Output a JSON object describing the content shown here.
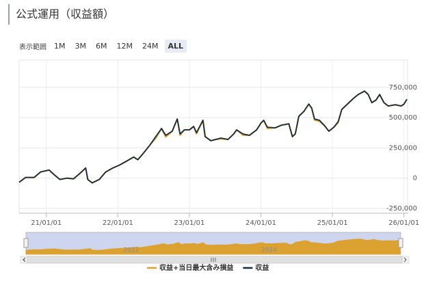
{
  "title": "公式運用（収益額）",
  "range_selector": {
    "label": "表示範囲",
    "buttons": [
      "1M",
      "3M",
      "6M",
      "12M",
      "24M",
      "ALL"
    ],
    "selected": "ALL"
  },
  "chart_data": {
    "type": "line",
    "x": [
      2020.62,
      2020.71,
      2020.83,
      2020.92,
      2021.04,
      2021.11,
      2021.19,
      2021.29,
      2021.38,
      2021.48,
      2021.55,
      2021.58,
      2021.64,
      2021.74,
      2021.83,
      2021.93,
      2022.02,
      2022.12,
      2022.22,
      2022.28,
      2022.36,
      2022.45,
      2022.53,
      2022.61,
      2022.67,
      2022.76,
      2022.83,
      2022.87,
      2022.93,
      2023.0,
      2023.06,
      2023.1,
      2023.16,
      2023.19,
      2023.22,
      2023.3,
      2023.37,
      2023.44,
      2023.54,
      2023.62,
      2023.66,
      2023.75,
      2023.84,
      2023.94,
      2024.0,
      2024.04,
      2024.09,
      2024.2,
      2024.29,
      2024.39,
      2024.44,
      2024.48,
      2024.53,
      2024.6,
      2024.67,
      2024.71,
      2024.75,
      2024.82,
      2024.89,
      2024.95,
      2025.02,
      2025.08,
      2025.13,
      2025.21,
      2025.29,
      2025.36,
      2025.45,
      2025.5,
      2025.55,
      2025.61,
      2025.66,
      2025.72,
      2025.78,
      2025.88,
      2025.96,
      2026.0,
      2026.04
    ],
    "series": [
      {
        "name": "収益+当日最大含み損益",
        "color": "#dba232",
        "values": [
          -34000,
          6000,
          6000,
          51000,
          67000,
          28000,
          -11000,
          0,
          -6000,
          45000,
          84000,
          -11000,
          -39000,
          -11000,
          51000,
          84000,
          107000,
          140000,
          174000,
          152000,
          208000,
          275000,
          330000,
          410000,
          340000,
          388000,
          489000,
          355000,
          399000,
          399000,
          427000,
          366000,
          444000,
          478000,
          343000,
          309000,
          320000,
          325000,
          320000,
          365000,
          399000,
          355000,
          354000,
          399000,
          455000,
          478000,
          410000,
          416000,
          438000,
          449000,
          343000,
          365000,
          511000,
          551000,
          612000,
          579000,
          480000,
          470000,
          433000,
          388000,
          421000,
          458000,
          567000,
          612000,
          657000,
          691000,
          719000,
          691000,
          624000,
          646000,
          691000,
          624000,
          596000,
          607000,
          596000,
          612000,
          652000
        ]
      },
      {
        "name": "収益",
        "color": "#162a40",
        "values": [
          -34000,
          6000,
          6000,
          51000,
          67000,
          28000,
          -11000,
          0,
          -6000,
          45000,
          84000,
          -11000,
          -39000,
          -11000,
          51000,
          84000,
          107000,
          140000,
          174000,
          152000,
          208000,
          275000,
          343000,
          410000,
          354000,
          388000,
          489000,
          365000,
          399000,
          399000,
          427000,
          376000,
          444000,
          478000,
          343000,
          309000,
          320000,
          331000,
          320000,
          365000,
          399000,
          365000,
          354000,
          399000,
          455000,
          478000,
          421000,
          416000,
          438000,
          449000,
          343000,
          365000,
          511000,
          551000,
          612000,
          579000,
          489000,
          478000,
          433000,
          388000,
          421000,
          466000,
          567000,
          612000,
          657000,
          691000,
          719000,
          691000,
          624000,
          646000,
          691000,
          624000,
          596000,
          607000,
          596000,
          612000,
          652000
        ]
      }
    ],
    "xlim": [
      2020.62,
      2026.05
    ],
    "xticks": [
      {
        "value": 2021,
        "label": "21/01/01"
      },
      {
        "value": 2022,
        "label": "22/01/01"
      },
      {
        "value": 2023,
        "label": "23/01/01"
      },
      {
        "value": 2024,
        "label": "24/01/01"
      },
      {
        "value": 2025,
        "label": "25/01/01"
      },
      {
        "value": 2026,
        "label": "26/01/01"
      }
    ],
    "ylim": [
      -290000,
      975000
    ],
    "yticks": [
      {
        "value": 750000,
        "label": "750,000"
      },
      {
        "value": 500000,
        "label": "500,000"
      },
      {
        "value": 250000,
        "label": "250,000"
      },
      0,
      {
        "value": -250000,
        "label": "-250,000"
      }
    ],
    "grid": true,
    "navigator_labels": [
      {
        "value": 2022,
        "label": "2022"
      },
      {
        "value": 2024,
        "label": "2024"
      }
    ],
    "legend": "bottom"
  }
}
